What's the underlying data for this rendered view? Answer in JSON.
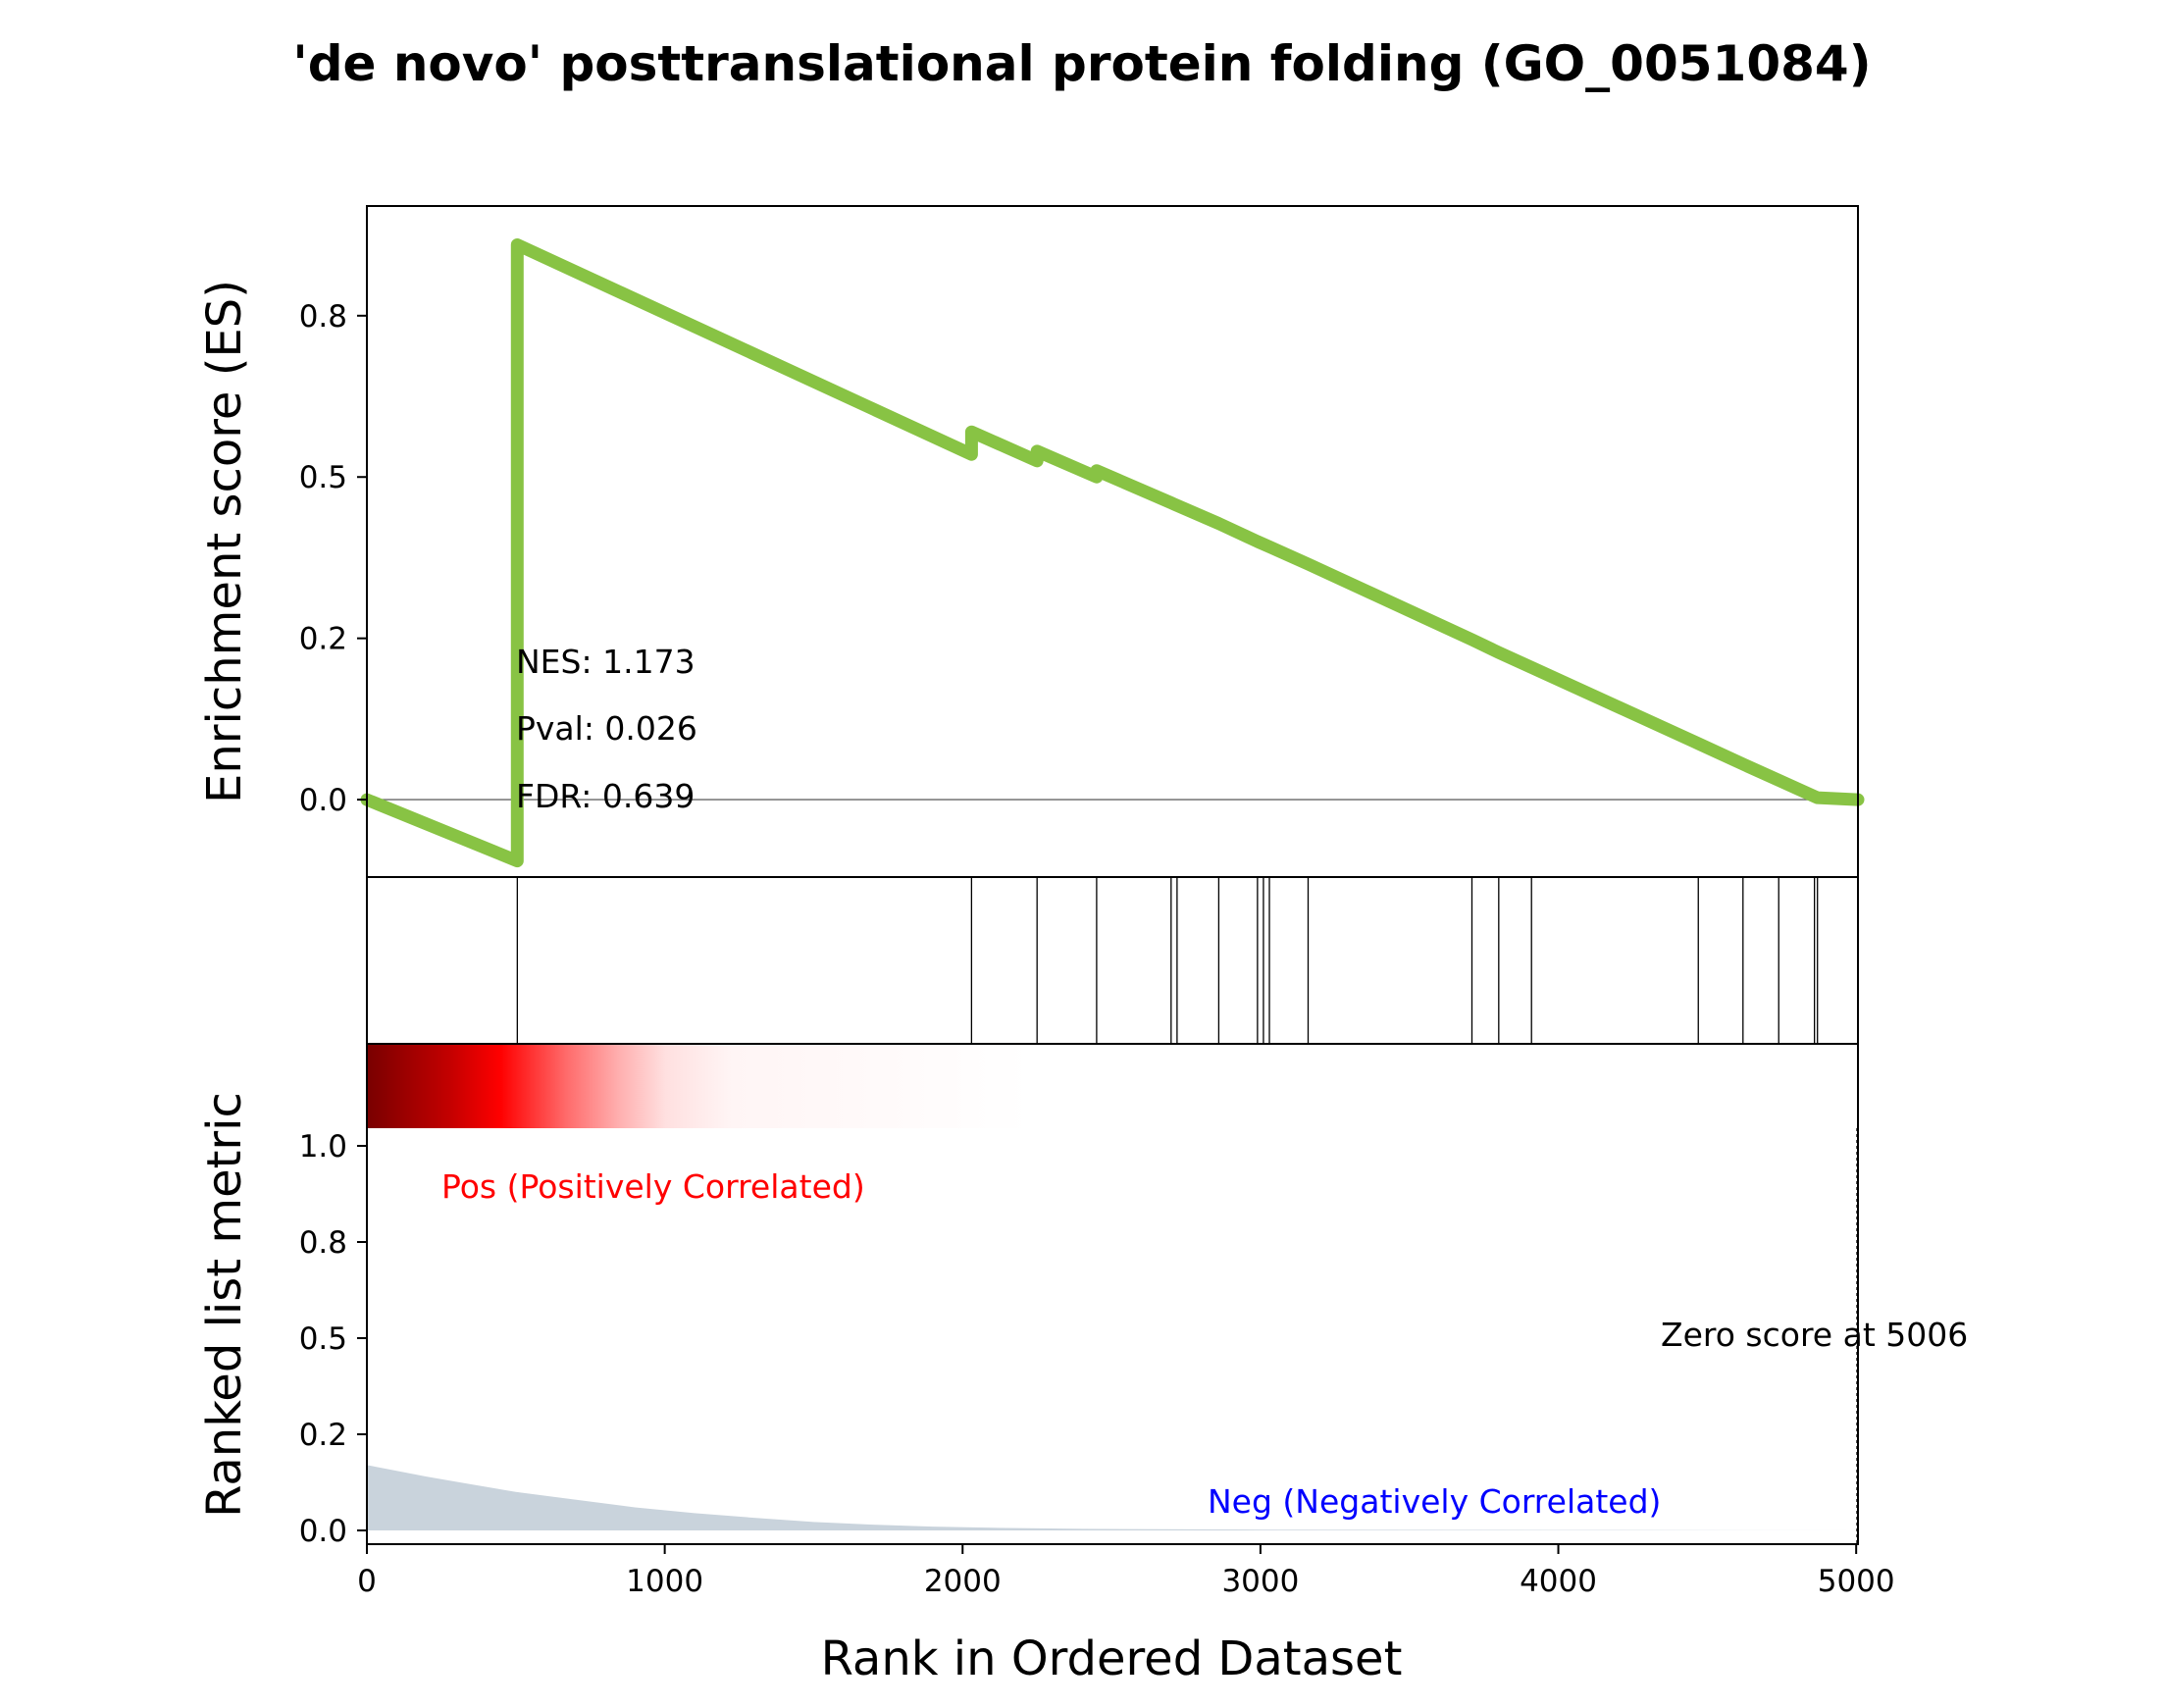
{
  "chart_data": {
    "type": "line",
    "title": "'de novo' posttranslational protein folding (GO_0051084)",
    "xlabel": "Rank in Ordered Dataset",
    "xlim": [
      0,
      5006
    ],
    "x_ticks": [
      0,
      1000,
      2000,
      3000,
      4000,
      5000
    ],
    "x_tick_labels": [
      "0",
      "1000",
      "2000",
      "3000",
      "4000",
      "5000"
    ],
    "es_panel": {
      "ylabel": "Enrichment score (ES)",
      "ylim": [
        -0.12,
        0.92
      ],
      "y_ticks": [
        0.0,
        0.25,
        0.5,
        0.75
      ],
      "y_tick_labels": [
        "0.0",
        "0.2",
        "0.5",
        "0.8"
      ],
      "line_color": "#88c344",
      "series": [
        {
          "x": [
            0,
            505,
            505,
            2030,
            2030,
            2250,
            2250,
            2450,
            2450,
            2700,
            2710,
            2860,
            2990,
            3030,
            3160,
            3710,
            3800,
            3910,
            4470,
            4620,
            4740,
            4860,
            4870,
            5006
          ],
          "y": [
            0.0,
            -0.095,
            0.86,
            0.535,
            0.57,
            0.525,
            0.54,
            0.5,
            0.51,
            0.46,
            0.458,
            0.428,
            0.4,
            0.392,
            0.365,
            0.248,
            0.228,
            0.205,
            0.087,
            0.055,
            0.03,
            0.005,
            0.003,
            0.0
          ]
        }
      ],
      "stats": {
        "nes": "NES: 1.173",
        "pval": "Pval: 0.026",
        "fdr": "FDR: 0.639"
      }
    },
    "hits_panel": {
      "hit_positions": [
        505,
        2030,
        2250,
        2450,
        2700,
        2720,
        2860,
        2990,
        3010,
        3030,
        3160,
        3710,
        3800,
        3910,
        4470,
        4620,
        4740,
        4860,
        4870
      ]
    },
    "rank_panel": {
      "ylabel": "Ranked list metric",
      "ylim": [
        -0.05,
        1.0
      ],
      "y_ticks": [
        0.0,
        0.25,
        0.5,
        0.75,
        1.0
      ],
      "y_tick_labels": [
        "0.0",
        "0.2",
        "0.5",
        "0.8",
        "1.0"
      ],
      "fill_color": "#c9d3dc",
      "series": [
        {
          "x": [
            0,
            100,
            200,
            350,
            500,
            700,
            900,
            1100,
            1300,
            1500,
            1700,
            1900,
            2100,
            2400,
            3000,
            4000,
            5006
          ],
          "y": [
            0.17,
            0.155,
            0.14,
            0.12,
            0.1,
            0.08,
            0.06,
            0.045,
            0.033,
            0.022,
            0.015,
            0.01,
            0.007,
            0.004,
            0.002,
            0.001,
            0.0
          ]
        }
      ],
      "pos_label": "Pos (Positively Correlated)",
      "neg_label": "Neg (Negatively Correlated)",
      "zero_label": "Zero score at 5006",
      "zero_x": 5006,
      "pos_color": "#ff0000",
      "neg_color": "#0000ff"
    }
  }
}
